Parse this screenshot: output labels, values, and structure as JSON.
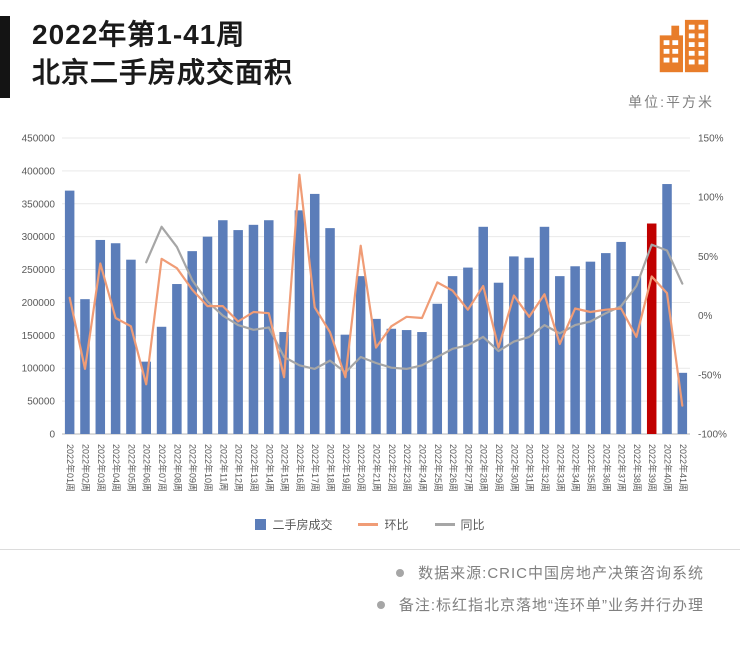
{
  "header": {
    "title_line1": "2022年第1-41周",
    "title_line2": "北京二手房成交面积",
    "unit_label": "单位:平方米"
  },
  "colors": {
    "accent_bar": "#141414",
    "title_text": "#1a1a1a",
    "icon_orange": "#E87D2A",
    "axis_text": "#595959",
    "grid_line": "#e9e9e9",
    "baseline": "#b7b7b7",
    "note_text": "#808080",
    "divider": "#dcdcdc"
  },
  "chart_data": {
    "type": "bar",
    "subtype": "combo-bar-line",
    "title": "2022年第1-41周 北京二手房成交面积",
    "unit": "平方米",
    "grid": true,
    "legend_position": "bottom",
    "categories": [
      "2022年01周",
      "2022年02周",
      "2022年03周",
      "2022年04周",
      "2022年05周",
      "2022年06周",
      "2022年07周",
      "2022年08周",
      "2022年09周",
      "2022年10周",
      "2022年11周",
      "2022年12周",
      "2022年13周",
      "2022年14周",
      "2022年15周",
      "2022年16周",
      "2022年17周",
      "2022年18周",
      "2022年19周",
      "2022年20周",
      "2022年21周",
      "2022年22周",
      "2022年23周",
      "2022年24周",
      "2022年25周",
      "2022年26周",
      "2022年27周",
      "2022年28周",
      "2022年29周",
      "2022年30周",
      "2022年31周",
      "2022年32周",
      "2022年33周",
      "2022年34周",
      "2022年35周",
      "2022年36周",
      "2022年37周",
      "2022年38周",
      "2022年39周",
      "2022年40周",
      "2022年41周"
    ],
    "series": [
      {
        "name": "二手房成交",
        "kind": "bar",
        "axis": "left",
        "color": "#5B7DB9",
        "values": [
          370000,
          205000,
          295000,
          290000,
          265000,
          110000,
          163000,
          228000,
          278000,
          300000,
          325000,
          310000,
          318000,
          325000,
          155000,
          340000,
          365000,
          313000,
          151000,
          240000,
          175000,
          160000,
          158000,
          155000,
          198000,
          240000,
          253000,
          315000,
          230000,
          270000,
          268000,
          315000,
          240000,
          255000,
          262000,
          275000,
          292000,
          240000,
          320000,
          380000,
          93000
        ]
      },
      {
        "name": "环比",
        "kind": "line",
        "axis": "right",
        "color": "#F09C76",
        "values": [
          15,
          -45,
          44,
          -2,
          -9,
          -58,
          48,
          40,
          22,
          8,
          8,
          -5,
          3,
          2,
          -52,
          119,
          7,
          -14,
          -52,
          59,
          -27,
          -9,
          -1,
          -2,
          28,
          21,
          5,
          25,
          -27,
          17,
          -1,
          18,
          -24,
          6,
          3,
          5,
          6,
          -18,
          33,
          19,
          -76
        ]
      },
      {
        "name": "同比",
        "kind": "line",
        "axis": "right",
        "color": "#A6A6A6",
        "values": [
          null,
          null,
          null,
          null,
          null,
          45,
          75,
          58,
          30,
          12,
          0,
          -8,
          -12,
          -10,
          -35,
          -42,
          -45,
          -38,
          -48,
          -35,
          -40,
          -44,
          -45,
          -42,
          -35,
          -28,
          -25,
          -18,
          -30,
          -22,
          -18,
          -8,
          -15,
          -8,
          -5,
          2,
          8,
          25,
          60,
          55,
          27
        ]
      }
    ],
    "highlight": {
      "index": 38,
      "category": "2022年39周",
      "color": "#C00000",
      "reason": "北京落地“连环单”业务并行办理"
    },
    "left_axis": {
      "min": 0,
      "max": 450000,
      "step": 50000,
      "tick_labels": [
        "450000",
        "400000",
        "350000",
        "300000",
        "250000",
        "200000",
        "150000",
        "100000",
        "50000",
        "0"
      ]
    },
    "right_axis": {
      "min": -100,
      "max": 150,
      "step": 50,
      "format": "percent",
      "tick_labels": [
        "150%",
        "100%",
        "50%",
        "0%",
        "-50%",
        "-100%"
      ]
    }
  },
  "footer": {
    "source_note": "数据来源:CRIC中国房地产决策咨询系统",
    "remark_note": "备注:标红指北京落地“连环单”业务并行办理"
  }
}
